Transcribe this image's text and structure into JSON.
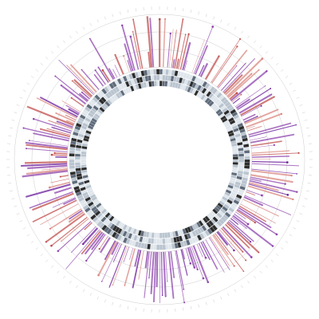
{
  "diagram": {
    "type": "circular-radial-bar",
    "title": "",
    "track_count": 5,
    "spoke_count": 300,
    "tile_columns": 3,
    "max_fraction": 1.0,
    "min_fraction": 0.15,
    "grid_circles": 3,
    "seed": 7,
    "colors": {
      "background": "#ffffff",
      "grid": "#cccccc",
      "spoke_purple": "#8e44ad",
      "spoke_violet": "#6a1b9a",
      "spoke_rose": "#c0504d",
      "spoke_pink": "#d98880",
      "tile_dark": "#2b2b2b",
      "tile_slate": "#5f6b7a",
      "tile_light": "#b9c4cf",
      "tile_pale": "#dfe6ec"
    }
  }
}
